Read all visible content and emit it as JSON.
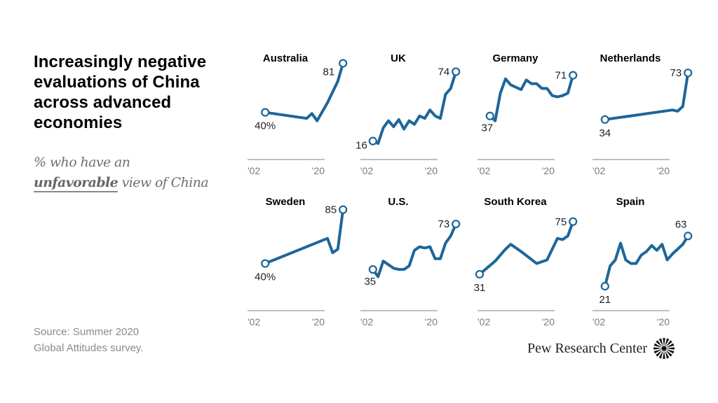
{
  "title": "Increasingly negative evaluations of China across advanced economies",
  "subtitle": {
    "line1": "% who have an",
    "emphasis": "unfavorable",
    "rest": " view of China"
  },
  "source": {
    "line1": "Source: Summer 2020",
    "line2": "Global Attitudes survey."
  },
  "logo": {
    "text": "Pew Research Center",
    "icon": "pew-sunburst-icon"
  },
  "colors": {
    "line": "#1d6699",
    "axis": "#999999",
    "tick_text": "#7a7a7a"
  },
  "chart_data": [
    {
      "type": "line",
      "title": "Australia",
      "xlabel": "",
      "ylabel": "",
      "xlim": [
        2002,
        2020
      ],
      "ylim": [
        0,
        100
      ],
      "x_ticks": [
        "'02",
        "'20"
      ],
      "x": [
        2005,
        2013,
        2014,
        2015,
        2017,
        2018,
        2019,
        2020
      ],
      "values": [
        40,
        35,
        39,
        33,
        48,
        57,
        66,
        81
      ],
      "start_label": "40%",
      "end_label": "81"
    },
    {
      "type": "line",
      "title": "UK",
      "xlabel": "",
      "ylabel": "",
      "xlim": [
        2002,
        2020
      ],
      "ylim": [
        0,
        100
      ],
      "x_ticks": [
        "'02",
        "'20"
      ],
      "x": [
        2004,
        2005,
        2006,
        2007,
        2008,
        2009,
        2010,
        2011,
        2012,
        2013,
        2014,
        2015,
        2016,
        2017,
        2018,
        2019,
        2020
      ],
      "values": [
        16,
        14,
        27,
        33,
        28,
        34,
        26,
        33,
        30,
        37,
        35,
        42,
        37,
        35,
        55,
        60,
        74
      ],
      "start_label": "16",
      "end_label": "74"
    },
    {
      "type": "line",
      "title": "Germany",
      "xlabel": "",
      "ylabel": "",
      "xlim": [
        2002,
        2020
      ],
      "ylim": [
        0,
        100
      ],
      "x_ticks": [
        "'02",
        "'20"
      ],
      "x": [
        2004,
        2005,
        2006,
        2007,
        2008,
        2009,
        2010,
        2011,
        2012,
        2013,
        2014,
        2015,
        2016,
        2017,
        2018,
        2019,
        2020
      ],
      "values": [
        37,
        33,
        56,
        68,
        63,
        61,
        59,
        67,
        64,
        64,
        60,
        60,
        54,
        53,
        54,
        56,
        71
      ],
      "start_label": "37",
      "end_label": "71"
    },
    {
      "type": "line",
      "title": "Netherlands",
      "xlabel": "",
      "ylabel": "",
      "xlim": [
        2002,
        2020
      ],
      "ylim": [
        0,
        100
      ],
      "x_ticks": [
        "'02",
        "'20"
      ],
      "x": [
        2004,
        2017,
        2018,
        2019,
        2020
      ],
      "values": [
        34,
        42,
        41,
        45,
        73
      ],
      "start_label": "34",
      "end_label": "73"
    },
    {
      "type": "line",
      "title": "Sweden",
      "xlabel": "",
      "ylabel": "",
      "xlim": [
        2002,
        2020
      ],
      "ylim": [
        0,
        100
      ],
      "x_ticks": [
        "'02",
        "'20"
      ],
      "x": [
        2005,
        2017,
        2018,
        2019,
        2020
      ],
      "values": [
        40,
        61,
        49,
        52,
        85
      ],
      "start_label": "40%",
      "end_label": "85"
    },
    {
      "type": "line",
      "title": "U.S.",
      "xlabel": "",
      "ylabel": "",
      "xlim": [
        2002,
        2020
      ],
      "ylim": [
        0,
        100
      ],
      "x_ticks": [
        "'02",
        "'20"
      ],
      "x": [
        2004,
        2005,
        2006,
        2007,
        2008,
        2009,
        2010,
        2011,
        2012,
        2013,
        2014,
        2015,
        2016,
        2017,
        2018,
        2019,
        2020
      ],
      "values": [
        35,
        29,
        42,
        39,
        36,
        35,
        35,
        38,
        51,
        54,
        53,
        54,
        44,
        44,
        57,
        63,
        73
      ],
      "start_label": "35",
      "end_label": "73"
    },
    {
      "type": "line",
      "title": "South Korea",
      "xlabel": "",
      "ylabel": "",
      "xlim": [
        2002,
        2020
      ],
      "ylim": [
        0,
        100
      ],
      "x_ticks": [
        "'02",
        "'20"
      ],
      "x": [
        2002,
        2005,
        2007,
        2008,
        2010,
        2013,
        2015,
        2017,
        2018,
        2019,
        2020
      ],
      "values": [
        31,
        42,
        52,
        56,
        50,
        40,
        43,
        61,
        60,
        63,
        75
      ],
      "start_label": "31",
      "end_label": "75"
    },
    {
      "type": "line",
      "title": "Spain",
      "xlabel": "",
      "ylabel": "",
      "xlim": [
        2002,
        2020
      ],
      "ylim": [
        0,
        100
      ],
      "x_ticks": [
        "'02",
        "'20"
      ],
      "x": [
        2004,
        2005,
        2006,
        2007,
        2008,
        2009,
        2010,
        2011,
        2012,
        2013,
        2014,
        2015,
        2016,
        2017,
        2018,
        2019,
        2020
      ],
      "values": [
        21,
        38,
        43,
        57,
        43,
        40,
        40,
        47,
        50,
        55,
        51,
        56,
        43,
        48,
        52,
        56,
        63
      ],
      "start_label": "21",
      "end_label": "63"
    }
  ]
}
